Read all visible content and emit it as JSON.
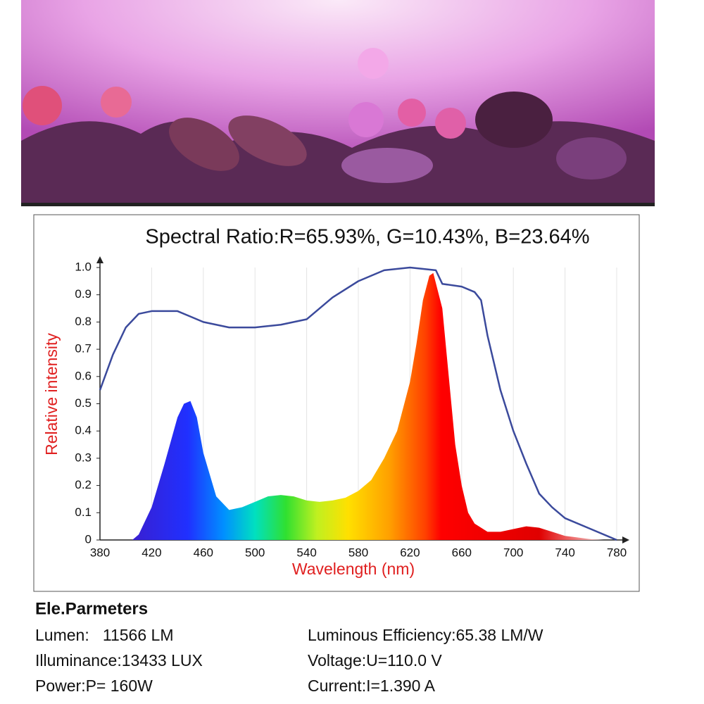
{
  "chart_data": {
    "type": "line",
    "title": "Spectral Ratio:R=65.93%, G=10.43%, B=23.64%",
    "xlabel": "Wavelength (nm)",
    "ylabel": "Relative intensity",
    "xlim": [
      380,
      780
    ],
    "ylim": [
      0,
      1
    ],
    "xticks": [
      380,
      420,
      460,
      500,
      540,
      580,
      620,
      660,
      700,
      740,
      780
    ],
    "yticks": [
      0,
      0.1,
      0.2,
      0.3,
      0.4,
      0.5,
      0.6,
      0.7,
      0.8,
      0.9,
      {
        "value": 1,
        "label": "1.0"
      }
    ],
    "grid": true,
    "series": [
      {
        "type": "area",
        "color": "spectrum",
        "x": [
          405,
          410,
          420,
          430,
          440,
          445,
          450,
          455,
          460,
          470,
          480,
          490,
          500,
          510,
          520,
          530,
          540,
          550,
          560,
          570,
          580,
          590,
          600,
          610,
          620,
          625,
          630,
          635,
          638,
          645,
          650,
          655,
          660,
          665,
          670,
          680,
          690,
          700,
          710,
          720,
          730,
          740,
          760,
          770
        ],
        "values": [
          0,
          0.02,
          0.12,
          0.28,
          0.45,
          0.5,
          0.51,
          0.45,
          0.32,
          0.16,
          0.11,
          0.12,
          0.14,
          0.16,
          0.165,
          0.16,
          0.145,
          0.14,
          0.145,
          0.155,
          0.18,
          0.22,
          0.3,
          0.4,
          0.58,
          0.72,
          0.88,
          0.97,
          0.98,
          0.85,
          0.6,
          0.35,
          0.2,
          0.1,
          0.06,
          0.03,
          0.03,
          0.04,
          0.05,
          0.045,
          0.03,
          0.015,
          0.003,
          0
        ]
      },
      {
        "type": "line",
        "color": "#3b4a9c",
        "x": [
          380,
          390,
          400,
          410,
          420,
          440,
          450,
          460,
          480,
          500,
          520,
          540,
          550,
          560,
          580,
          600,
          620,
          640,
          645,
          660,
          670,
          675,
          680,
          690,
          700,
          710,
          720,
          730,
          740,
          760,
          780
        ],
        "values": [
          0.55,
          0.68,
          0.78,
          0.83,
          0.84,
          0.84,
          0.82,
          0.8,
          0.78,
          0.78,
          0.79,
          0.81,
          0.85,
          0.89,
          0.95,
          0.99,
          1,
          0.99,
          0.94,
          0.93,
          0.91,
          0.88,
          0.75,
          0.55,
          0.4,
          0.28,
          0.17,
          0.12,
          0.08,
          0.04,
          0
        ]
      }
    ]
  },
  "parameters": {
    "heading": "Ele.Parmeters",
    "items": [
      "Lumen:   11566 LM",
      "Luminous Efficiency:65.38 LM/W",
      "Illuminance:13433 LUX",
      "Voltage:U=110.0 V",
      "Power:P= 160W",
      "Current:I=1.390 A"
    ]
  }
}
